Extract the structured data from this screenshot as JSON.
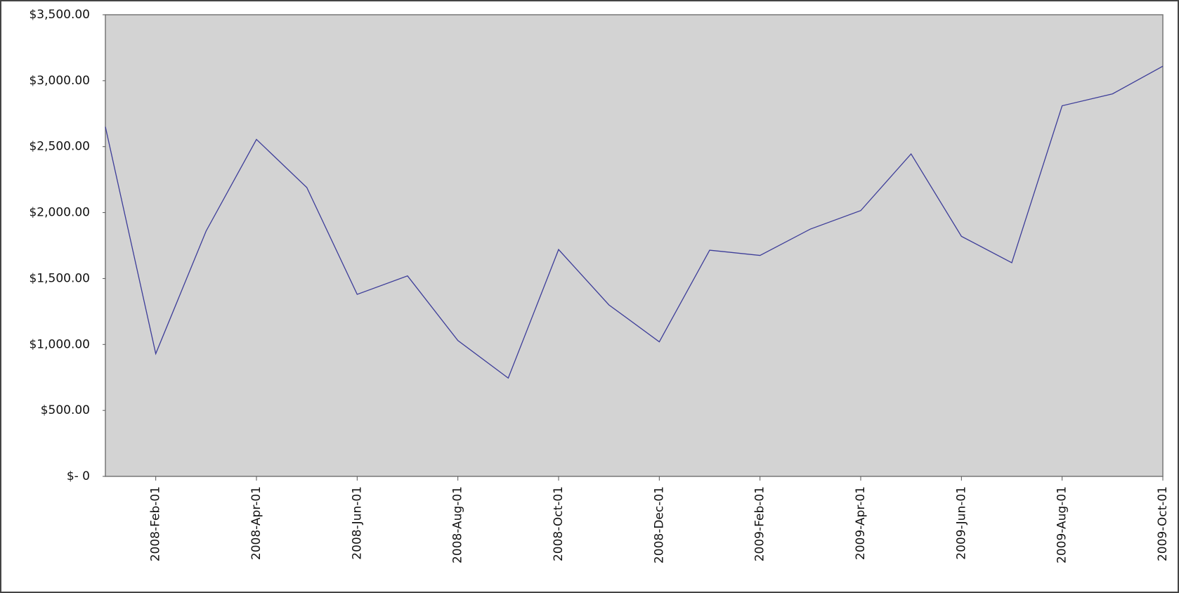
{
  "chart_data": {
    "type": "line",
    "categories": [
      null,
      "2008-Feb-01",
      null,
      "2008-Apr-01",
      null,
      "2008-Jun-01",
      null,
      "2008-Aug-01",
      null,
      "2008-Oct-01",
      null,
      "2008-Dec-01",
      null,
      "2009-Feb-01",
      null,
      "2009-Apr-01",
      null,
      "2009-Jun-01",
      null,
      "2009-Aug-01",
      null,
      "2009-Oct-01"
    ],
    "values": [
      2650,
      930,
      1860,
      2555,
      2190,
      1380,
      1520,
      1030,
      745,
      1720,
      1300,
      1020,
      1715,
      1675,
      1875,
      2015,
      2445,
      1820,
      1620,
      2810,
      2900,
      3110
    ],
    "color": "#3d3d99",
    "ylim": [
      0,
      3500
    ],
    "yticks": [
      {
        "value": 0,
        "label": "$- 0"
      },
      {
        "value": 500,
        "label": "$500.00"
      },
      {
        "value": 1000,
        "label": "$1,000.00"
      },
      {
        "value": 1500,
        "label": "$1,500.00"
      },
      {
        "value": 2000,
        "label": "$2,000.00"
      },
      {
        "value": 2500,
        "label": "$2,500.00"
      },
      {
        "value": 3000,
        "label": "$3,000.00"
      },
      {
        "value": 3500,
        "label": "$3,500.00"
      }
    ],
    "grid": false
  }
}
